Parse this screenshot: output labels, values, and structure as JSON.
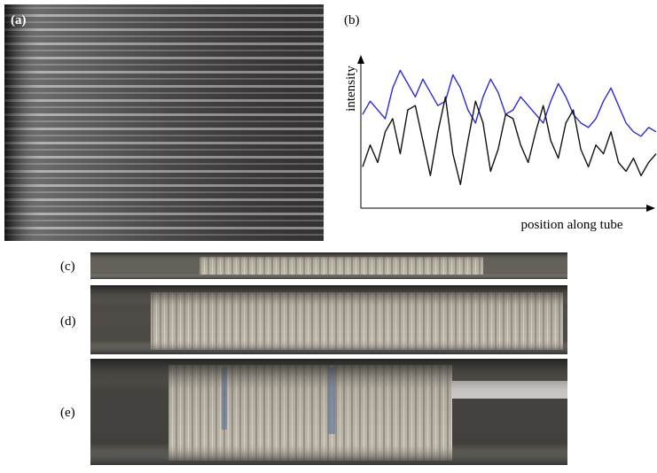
{
  "panel_labels": {
    "a": "(a)",
    "b": "(b)",
    "c": "(c)",
    "d": "(d)",
    "e": "(e)"
  },
  "chart_data": {
    "type": "line",
    "y_label": "intensity",
    "x_label": "position along tube",
    "ylim": [
      0,
      100
    ],
    "series": [
      {
        "color": "#2a2ad8",
        "values": [
          63,
          72,
          66,
          60,
          81,
          93,
          84,
          75,
          87,
          78,
          69,
          72,
          90,
          81,
          66,
          57,
          75,
          87,
          78,
          63,
          66,
          75,
          69,
          63,
          57,
          72,
          84,
          75,
          63,
          57,
          54,
          60,
          72,
          81,
          69,
          57,
          51,
          48,
          54,
          51
        ]
      },
      {
        "color": "#111111",
        "values": [
          27,
          42,
          30,
          51,
          60,
          36,
          66,
          69,
          45,
          21,
          51,
          75,
          36,
          15,
          45,
          72,
          57,
          24,
          39,
          63,
          60,
          42,
          30,
          51,
          69,
          45,
          33,
          57,
          66,
          39,
          27,
          42,
          36,
          51,
          30,
          24,
          33,
          21,
          30,
          36
        ]
      }
    ]
  }
}
